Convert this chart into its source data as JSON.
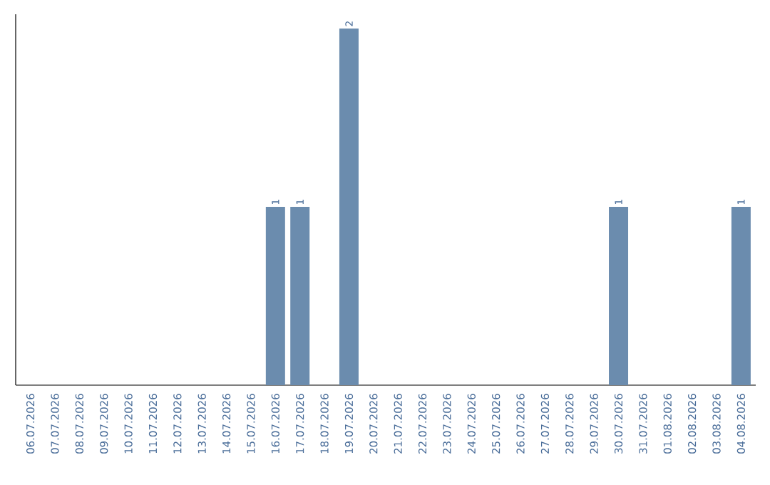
{
  "chart_data": {
    "type": "bar",
    "categories": [
      "06.07.2026",
      "07.07.2026",
      "08.07.2026",
      "09.07.2026",
      "10.07.2026",
      "11.07.2026",
      "12.07.2026",
      "13.07.2026",
      "14.07.2026",
      "15.07.2026",
      "16.07.2026",
      "17.07.2026",
      "18.07.2026",
      "19.07.2026",
      "20.07.2026",
      "21.07.2026",
      "22.07.2026",
      "23.07.2026",
      "24.07.2026",
      "25.07.2026",
      "26.07.2026",
      "27.07.2026",
      "28.07.2026",
      "29.07.2026",
      "30.07.2026",
      "31.07.2026",
      "01.08.2026",
      "02.08.2026",
      "03.08.2026",
      "04.08.2026"
    ],
    "values": [
      0,
      0,
      0,
      0,
      0,
      0,
      0,
      0,
      0,
      0,
      1,
      1,
      0,
      2,
      0,
      0,
      0,
      0,
      0,
      0,
      0,
      0,
      0,
      0,
      1,
      0,
      0,
      0,
      0,
      1
    ],
    "value_labels": [
      null,
      null,
      null,
      null,
      null,
      null,
      null,
      null,
      null,
      null,
      "1",
      "1",
      null,
      "2",
      null,
      null,
      null,
      null,
      null,
      null,
      null,
      null,
      null,
      null,
      "1",
      null,
      null,
      null,
      null,
      "1"
    ],
    "color": "#6b8cae"
  }
}
